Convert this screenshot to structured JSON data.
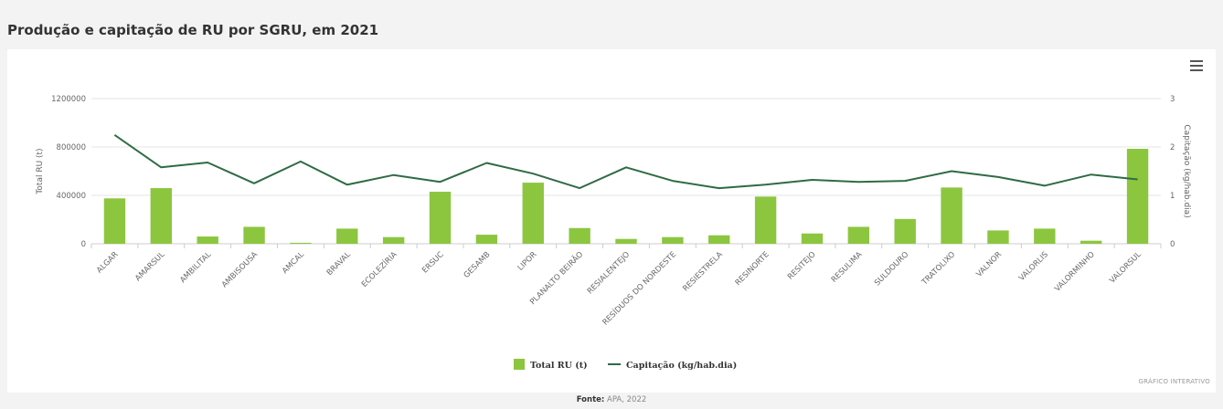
{
  "title": "Produção e capitação de RU por SGRU, em 2021",
  "menu_icon": "hamburger-menu-icon",
  "interactive_label": "GRÁFICO INTERATIVO",
  "source": {
    "label": "Fonte:",
    "text": "APA, 2022"
  },
  "colors": {
    "bar": "#8cc63f",
    "line": "#2f6b45",
    "grid": "#e6e6e6",
    "axis_text": "#666666"
  },
  "chart_data": {
    "type": "bar",
    "title": "Produção e capitação de RU por SGRU, em 2021",
    "categories": [
      "ALGAR",
      "AMARSUL",
      "AMBILITAL",
      "AMBISOUSA",
      "AMCAL",
      "BRAVAL",
      "ECOLEZÍRIA",
      "ERSUC",
      "GESAMB",
      "LIPOR",
      "PLANALTO BEIRÃO",
      "RESIALENTEJO",
      "RESÍDUOS DO NORDESTE",
      "RESIESTRELA",
      "RESINORTE",
      "RESITEJO",
      "RESULIMA",
      "SULDOURO",
      "TRATOLIXO",
      "VALNOR",
      "VALORLIS",
      "VALORMINHO",
      "VALORSUL"
    ],
    "series": [
      {
        "name": "Total RU (t)",
        "type": "bar",
        "axis": "left",
        "values": [
          375000,
          460000,
          60000,
          140000,
          8000,
          125000,
          55000,
          430000,
          75000,
          505000,
          130000,
          40000,
          55000,
          70000,
          390000,
          85000,
          140000,
          205000,
          465000,
          110000,
          125000,
          25000,
          785000
        ]
      },
      {
        "name": "Capitação (kg/hab.dia)",
        "type": "line",
        "axis": "right",
        "values": [
          2.25,
          1.58,
          1.68,
          1.25,
          1.7,
          1.22,
          1.42,
          1.28,
          1.67,
          1.45,
          1.15,
          1.58,
          1.3,
          1.15,
          1.22,
          1.32,
          1.28,
          1.3,
          1.5,
          1.38,
          1.2,
          1.43,
          1.33
        ]
      }
    ],
    "yAxisLeft": {
      "label": "Total RU (t)",
      "min": 0,
      "max": 1200000,
      "ticks": [
        "0",
        "400000",
        "800000",
        "1200000"
      ],
      "tickValues": [
        0,
        400000,
        800000,
        1200000
      ]
    },
    "yAxisRight": {
      "label": "Capitação (kg/hab.dia)",
      "min": 0,
      "max": 3,
      "ticks": [
        "0",
        "1",
        "2",
        "3"
      ],
      "tickValues": [
        0,
        1,
        2,
        3
      ]
    },
    "legend": {
      "position": "bottom-center",
      "items": [
        "Total RU (t)",
        "Capitação (kg/hab.dia)"
      ]
    },
    "grid": true
  }
}
